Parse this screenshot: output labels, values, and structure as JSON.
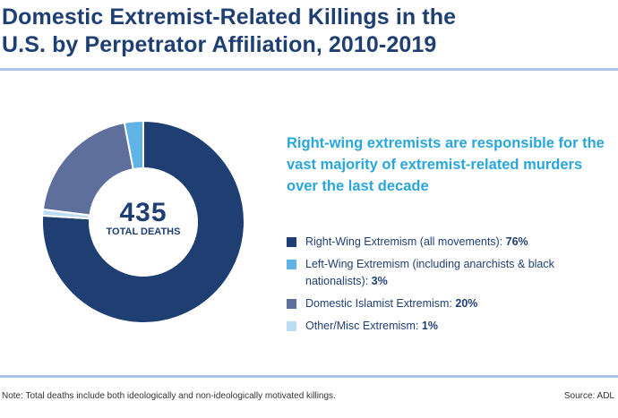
{
  "title_line1": "Domestic Extremist-Related Killings in the",
  "title_line2": "U.S. by Perpetrator Affiliation, 2010-2019",
  "headline": "Right-wing extremists are responsible for the vast majority of extremist-related murders over the last decade",
  "total_value": "435",
  "total_label": "TOTAL DEATHS",
  "note": "Note: Total deaths include both ideologically and non-ideologically motivated killings.",
  "source": "Source: ADL",
  "chart_data": {
    "type": "pie",
    "donut": true,
    "total": 435,
    "unit": "%",
    "slices": [
      {
        "label": "Right-Wing Extremism (all movements): ",
        "value": 76,
        "display": "76%",
        "color": "#1f3f73"
      },
      {
        "label": "Other/Misc Extremism: ",
        "value": 1,
        "display": "1%",
        "color": "#bcdcf3"
      },
      {
        "label": "Domestic Islamist Extremism: ",
        "value": 20,
        "display": "20%",
        "color": "#5e6f9b"
      },
      {
        "label": "Left-Wing Extremism (including anarchists & black nationalists): ",
        "value": 3,
        "display": "3%",
        "color": "#5fb3e6"
      }
    ],
    "legend_order": [
      0,
      3,
      2,
      1
    ],
    "legend_placement": "right"
  }
}
